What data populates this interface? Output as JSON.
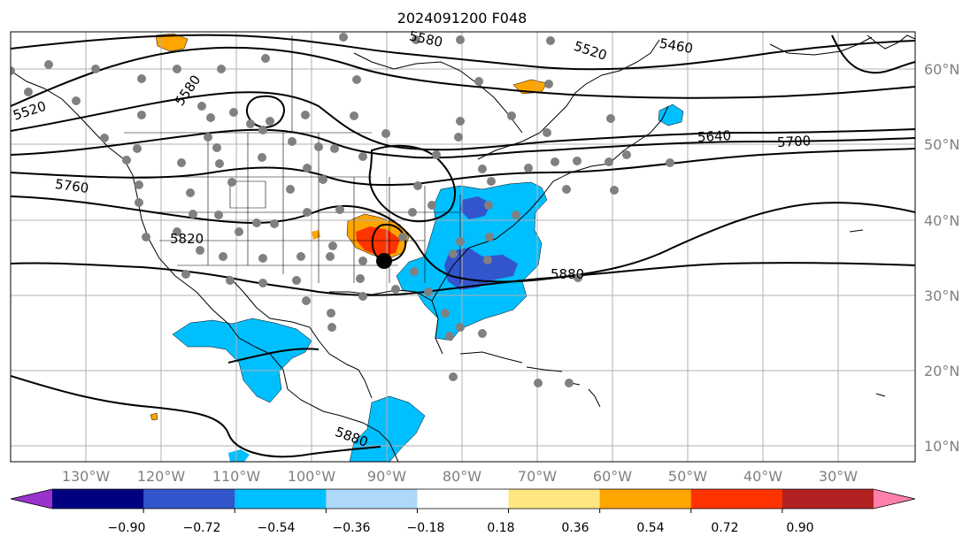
{
  "title": "2024091200 F048",
  "map": {
    "latitude_labels": [
      "60°N",
      "50°N",
      "40°N",
      "30°N",
      "20°N",
      "10°N"
    ],
    "longitude_labels": [
      "130°W",
      "120°W",
      "110°W",
      "100°W",
      "90°W",
      "80°W",
      "70°W",
      "60°W",
      "50°W",
      "40°W",
      "30°W"
    ],
    "contour_labels": [
      "5460",
      "5520",
      "5520",
      "5580",
      "5580",
      "5640",
      "5700",
      "5760",
      "5820",
      "5880",
      "5880"
    ],
    "storm_center_marker": "black dot"
  },
  "colorbar": {
    "tick_labels": [
      "−0.90",
      "−0.72",
      "−0.54",
      "−0.36",
      "−0.18",
      "0.18",
      "0.36",
      "0.54",
      "0.72",
      "0.90"
    ],
    "colors": [
      "#9933cc",
      "#000080",
      "#3355cc",
      "#00bfff",
      "#add8f8",
      "#ffffff",
      "#ffe680",
      "#ffa500",
      "#ff3300",
      "#b22222",
      "#ff80aa"
    ]
  },
  "colors": {
    "field_light_blue": "#00bfff",
    "field_blue": "#3355cc",
    "field_orange": "#ffa500",
    "field_red": "#ff3300",
    "station_gray": "#808080",
    "grid_gray": "#b0b0b0",
    "axis_label_gray": "#808080"
  }
}
